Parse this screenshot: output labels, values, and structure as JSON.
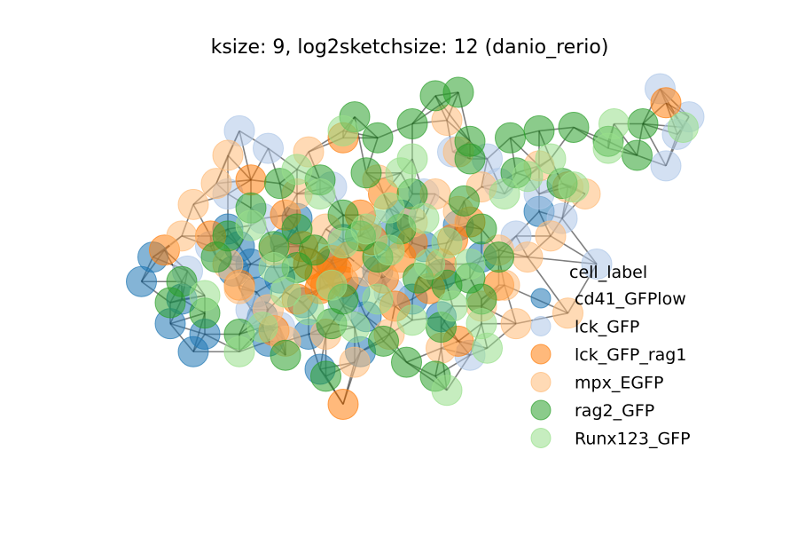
{
  "chart_data": {
    "type": "scatter",
    "title": "ksize: 9, log2sketchsize: 12 (danio_rerio)",
    "xlabel": "",
    "ylabel": "",
    "axes_visible": false,
    "grid": false,
    "xlim": [
      0,
      100
    ],
    "ylim": [
      0,
      100
    ],
    "legend": {
      "title": "cell_label",
      "placement": "right",
      "entries": [
        {
          "name": "cd41_GFPlow",
          "color": "#1f77b4"
        },
        {
          "name": "lck_GFP",
          "color": "#aec7e8"
        },
        {
          "name": "lck_GFP_rag1",
          "color": "#ff7f0e"
        },
        {
          "name": "mpx_EGFP",
          "color": "#ffbb78"
        },
        {
          "name": "rag2_GFP",
          "color": "#2ca02c"
        },
        {
          "name": "Runx123_GFP",
          "color": "#98df8a"
        }
      ]
    },
    "series": [
      {
        "name": "cd41_GFPlow",
        "color": "#1f77b4",
        "points": [
          [
            3,
            45
          ],
          [
            5,
            52
          ],
          [
            8,
            33
          ],
          [
            10,
            40
          ],
          [
            12,
            25
          ],
          [
            14,
            30
          ],
          [
            18,
            60
          ],
          [
            20,
            55
          ],
          [
            22,
            50
          ],
          [
            23,
            42
          ],
          [
            24,
            35
          ],
          [
            25,
            28
          ],
          [
            27,
            46
          ],
          [
            28,
            56
          ],
          [
            30,
            63
          ],
          [
            31,
            39
          ],
          [
            32,
            30
          ],
          [
            34,
            20
          ],
          [
            36,
            50
          ],
          [
            38,
            57
          ],
          [
            40,
            42
          ],
          [
            42,
            35
          ],
          [
            44,
            48
          ],
          [
            46,
            58
          ],
          [
            48,
            64
          ],
          [
            50,
            40
          ],
          [
            52,
            55
          ],
          [
            55,
            47
          ],
          [
            58,
            61
          ],
          [
            62,
            52
          ],
          [
            72,
            65
          ],
          [
            55,
            35
          ],
          [
            41,
            25
          ],
          [
            19,
            48
          ]
        ]
      },
      {
        "name": "lck_GFP",
        "color": "#aec7e8",
        "points": [
          [
            93,
            100
          ],
          [
            98,
            92
          ],
          [
            96,
            87
          ],
          [
            94,
            78
          ],
          [
            20,
            88
          ],
          [
            25,
            83
          ],
          [
            18,
            70
          ],
          [
            15,
            55
          ],
          [
            22,
            37
          ],
          [
            27,
            32
          ],
          [
            38,
            38
          ],
          [
            44,
            61
          ],
          [
            52,
            70
          ],
          [
            57,
            82
          ],
          [
            63,
            80
          ],
          [
            68,
            58
          ],
          [
            72,
            70
          ],
          [
            76,
            63
          ],
          [
            82,
            50
          ],
          [
            65,
            73
          ],
          [
            60,
            24
          ],
          [
            36,
            72
          ],
          [
            46,
            42
          ],
          [
            11,
            48
          ],
          [
            24,
            63
          ]
        ]
      },
      {
        "name": "lck_GFP_rag1",
        "color": "#ff7f0e",
        "points": [
          [
            94,
            96
          ],
          [
            38,
            86
          ],
          [
            7,
            54
          ],
          [
            15,
            58
          ],
          [
            22,
            74
          ],
          [
            28,
            64
          ],
          [
            32,
            50
          ],
          [
            34,
            47
          ],
          [
            35,
            44
          ],
          [
            36,
            51
          ],
          [
            37,
            48
          ],
          [
            38,
            45
          ],
          [
            39,
            52
          ],
          [
            34,
            43
          ],
          [
            31,
            55
          ],
          [
            45,
            46
          ],
          [
            48,
            52
          ],
          [
            50,
            56
          ],
          [
            53,
            43
          ],
          [
            55,
            50
          ],
          [
            57,
            57
          ],
          [
            60,
            62
          ],
          [
            65,
            44
          ],
          [
            45,
            70
          ],
          [
            43,
            57
          ],
          [
            58,
            28
          ],
          [
            38,
            10
          ],
          [
            26,
            31
          ],
          [
            20,
            44
          ],
          [
            47,
            38
          ],
          [
            41,
            64
          ],
          [
            30,
            40
          ]
        ]
      },
      {
        "name": "mpx_EGFP",
        "color": "#ffbb78",
        "points": [
          [
            56,
            91
          ],
          [
            18,
            81
          ],
          [
            16,
            73
          ],
          [
            12,
            67
          ],
          [
            10,
            58
          ],
          [
            20,
            43
          ],
          [
            25,
            37
          ],
          [
            28,
            28
          ],
          [
            35,
            30
          ],
          [
            46,
            30
          ],
          [
            55,
            26
          ],
          [
            62,
            38
          ],
          [
            66,
            44
          ],
          [
            70,
            52
          ],
          [
            74,
            58
          ],
          [
            77,
            72
          ],
          [
            80,
            70
          ],
          [
            72,
            78
          ],
          [
            62,
            72
          ],
          [
            58,
            65
          ],
          [
            65,
            54
          ],
          [
            68,
            33
          ],
          [
            58,
            82
          ],
          [
            44,
            74
          ],
          [
            30,
            70
          ],
          [
            26,
            54
          ],
          [
            35,
            60
          ],
          [
            42,
            48
          ],
          [
            50,
            62
          ],
          [
            54,
            70
          ],
          [
            77,
            36
          ],
          [
            40,
            22
          ],
          [
            32,
            82
          ],
          [
            47,
            50
          ],
          [
            18,
            50
          ]
        ]
      },
      {
        "name": "rag2_GFP",
        "color": "#2ca02c",
        "points": [
          [
            40,
            92
          ],
          [
            54,
            98
          ],
          [
            58,
            99
          ],
          [
            50,
            90
          ],
          [
            60,
            85
          ],
          [
            67,
            86
          ],
          [
            72,
            88
          ],
          [
            78,
            89
          ],
          [
            84,
            85
          ],
          [
            90,
            90
          ],
          [
            89,
            81
          ],
          [
            76,
            73
          ],
          [
            68,
            76
          ],
          [
            60,
            80
          ],
          [
            50,
            70
          ],
          [
            42,
            76
          ],
          [
            38,
            64
          ],
          [
            34,
            74
          ],
          [
            30,
            60
          ],
          [
            26,
            55
          ],
          [
            18,
            58
          ],
          [
            10,
            45
          ],
          [
            8,
            39
          ],
          [
            14,
            36
          ],
          [
            20,
            30
          ],
          [
            28,
            24
          ],
          [
            35,
            18
          ],
          [
            45,
            28
          ],
          [
            49,
            22
          ],
          [
            55,
            32
          ],
          [
            60,
            46
          ],
          [
            62,
            40
          ],
          [
            65,
            52
          ],
          [
            44,
            52
          ],
          [
            30,
            49
          ],
          [
            22,
            66
          ],
          [
            54,
            18
          ],
          [
            38,
            40
          ],
          [
            48,
            60
          ],
          [
            33,
            54
          ],
          [
            16,
            52
          ],
          [
            51,
            46
          ],
          [
            59,
            68
          ],
          [
            41,
            58
          ],
          [
            56,
            44
          ],
          [
            27,
            73
          ],
          [
            36,
            33
          ],
          [
            62,
            60
          ],
          [
            44,
            86
          ]
        ]
      },
      {
        "name": "Runx123_GFP",
        "color": "#98df8a",
        "points": [
          [
            38,
            88
          ],
          [
            97,
            89
          ],
          [
            85,
            90
          ],
          [
            56,
            14
          ],
          [
            63,
            26
          ],
          [
            20,
            25
          ],
          [
            26,
            49
          ],
          [
            34,
            70
          ],
          [
            42,
            60
          ],
          [
            46,
            54
          ],
          [
            52,
            63
          ],
          [
            56,
            56
          ],
          [
            60,
            50
          ],
          [
            66,
            70
          ],
          [
            70,
            75
          ],
          [
            74,
            80
          ],
          [
            78,
            72
          ],
          [
            84,
            83
          ],
          [
            48,
            76
          ],
          [
            30,
            77
          ],
          [
            22,
            61
          ],
          [
            14,
            41
          ],
          [
            40,
            32
          ],
          [
            32,
            37
          ],
          [
            44,
            40
          ],
          [
            50,
            34
          ],
          [
            38,
            56
          ],
          [
            28,
            42
          ],
          [
            53,
            50
          ],
          [
            46,
            66
          ],
          [
            36,
            44
          ],
          [
            57,
            38
          ],
          [
            24,
            32
          ],
          [
            62,
            33
          ],
          [
            50,
            80
          ]
        ]
      }
    ]
  }
}
